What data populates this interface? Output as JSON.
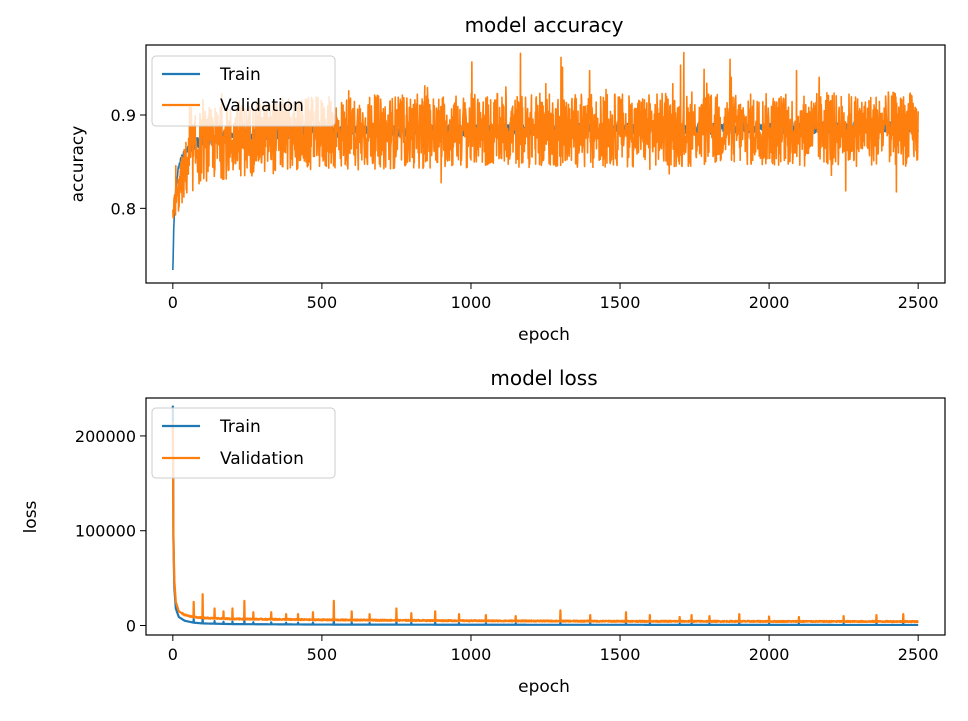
{
  "chart_data": [
    {
      "type": "line",
      "title": "model accuracy",
      "xlabel": "epoch",
      "ylabel": "accuracy",
      "xlim": [
        -90,
        2590
      ],
      "ylim": [
        0.72,
        0.975
      ],
      "xticks": [
        0,
        500,
        1000,
        1500,
        2000,
        2500
      ],
      "xtick_labels": [
        "0",
        "500",
        "1000",
        "1500",
        "2000",
        "2500"
      ],
      "yticks": [
        0.8,
        0.9
      ],
      "ytick_labels": [
        "0.8",
        "0.9"
      ],
      "grid": false,
      "legend": "top-left",
      "series": [
        {
          "name": "Train",
          "color": "#1f77b4",
          "x": [
            0,
            3,
            6,
            10,
            15,
            20,
            30,
            45,
            60,
            80,
            100,
            150,
            200,
            300,
            400,
            500,
            700,
            1000,
            1500,
            2000,
            2500
          ],
          "values": [
            0.733,
            0.775,
            0.8,
            0.82,
            0.835,
            0.845,
            0.855,
            0.862,
            0.867,
            0.87,
            0.873,
            0.876,
            0.878,
            0.88,
            0.881,
            0.882,
            0.883,
            0.884,
            0.885,
            0.886,
            0.887
          ],
          "noise": 0.006
        },
        {
          "name": "Validation",
          "color": "#ff7f0e",
          "x": [
            0,
            10,
            30,
            60,
            100,
            200,
            300,
            500,
            700,
            1000,
            1500,
            2000,
            2500
          ],
          "values": [
            0.795,
            0.805,
            0.83,
            0.855,
            0.868,
            0.872,
            0.876,
            0.88,
            0.882,
            0.883,
            0.884,
            0.884,
            0.885
          ],
          "noise_range": [
            0.79,
            0.968
          ]
        }
      ]
    },
    {
      "type": "line",
      "title": "model loss",
      "xlabel": "epoch",
      "ylabel": "loss",
      "xlim": [
        -90,
        2590
      ],
      "ylim": [
        -10000,
        240000
      ],
      "xticks": [
        0,
        500,
        1000,
        1500,
        2000,
        2500
      ],
      "xtick_labels": [
        "0",
        "500",
        "1000",
        "1500",
        "2000",
        "2500"
      ],
      "yticks": [
        0,
        100000,
        200000
      ],
      "ytick_labels": [
        "0",
        "100000",
        "200000"
      ],
      "grid": false,
      "legend": "top-left",
      "series": [
        {
          "name": "Train",
          "color": "#1f77b4",
          "x": [
            0,
            2,
            5,
            10,
            20,
            40,
            70,
            100,
            200,
            500,
            1000,
            2500
          ],
          "values": [
            232000,
            90000,
            40000,
            18000,
            9000,
            5000,
            3000,
            2200,
            1500,
            1000,
            800,
            600
          ]
        },
        {
          "name": "Validation",
          "color": "#ff7f0e",
          "x": [
            0,
            2,
            5,
            10,
            20,
            40,
            70,
            100,
            200,
            500,
            1000,
            1500,
            2500
          ],
          "values": [
            215000,
            95000,
            48000,
            25000,
            15000,
            11000,
            9000,
            8000,
            7000,
            6000,
            5000,
            4500,
            4200
          ],
          "spikes": [
            [
              70,
              25000
            ],
            [
              100,
              33000
            ],
            [
              140,
              18000
            ],
            [
              170,
              15000
            ],
            [
              200,
              18000
            ],
            [
              240,
              26000
            ],
            [
              270,
              14000
            ],
            [
              330,
              14000
            ],
            [
              380,
              12000
            ],
            [
              420,
              12000
            ],
            [
              470,
              14000
            ],
            [
              540,
              26000
            ],
            [
              600,
              15000
            ],
            [
              660,
              12000
            ],
            [
              750,
              18000
            ],
            [
              800,
              13000
            ],
            [
              880,
              15000
            ],
            [
              960,
              12000
            ],
            [
              1050,
              11000
            ],
            [
              1150,
              10000
            ],
            [
              1300,
              16000
            ],
            [
              1400,
              11000
            ],
            [
              1520,
              14000
            ],
            [
              1600,
              11000
            ],
            [
              1700,
              9000
            ],
            [
              1740,
              11000
            ],
            [
              1800,
              10000
            ],
            [
              1900,
              12000
            ],
            [
              2000,
              9500
            ],
            [
              2100,
              9000
            ],
            [
              2250,
              10000
            ],
            [
              2360,
              11000
            ],
            [
              2450,
              12000
            ]
          ]
        }
      ]
    }
  ]
}
